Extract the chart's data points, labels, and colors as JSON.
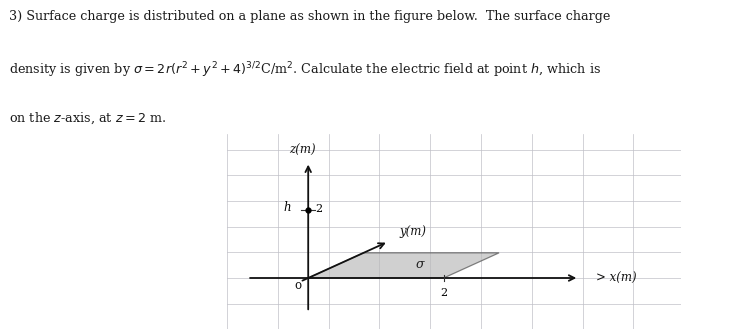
{
  "background_color": "#ffffff",
  "text_color": "#1a1a1a",
  "grid_color": "#c8c8d0",
  "fig_width": 7.32,
  "fig_height": 3.36,
  "dpi": 100,
  "text_lines": [
    "3) Surface charge is distributed on a plane as shown in the figure below.  The surface charge",
    "density is given by $\\sigma = 2r(r^2 + y^2 + 4)^{3/2}$C/m$^2$. Calculate the electric field at point $h$, which is",
    "on the $z$-axis, at $z = 2$ m."
  ],
  "diagram": {
    "z_axis_label": "z(m)",
    "y_axis_label": "y(m)",
    "x_axis_label": "> x(m)",
    "origin_label": "o",
    "h_label": "h",
    "z_tick": "2",
    "x_tick": "2",
    "sigma_label": "σ",
    "plane_color": "#b8b8b8",
    "plane_alpha": 0.65,
    "axis_color": "#111111",
    "grid_color": "#c0c0c8"
  }
}
